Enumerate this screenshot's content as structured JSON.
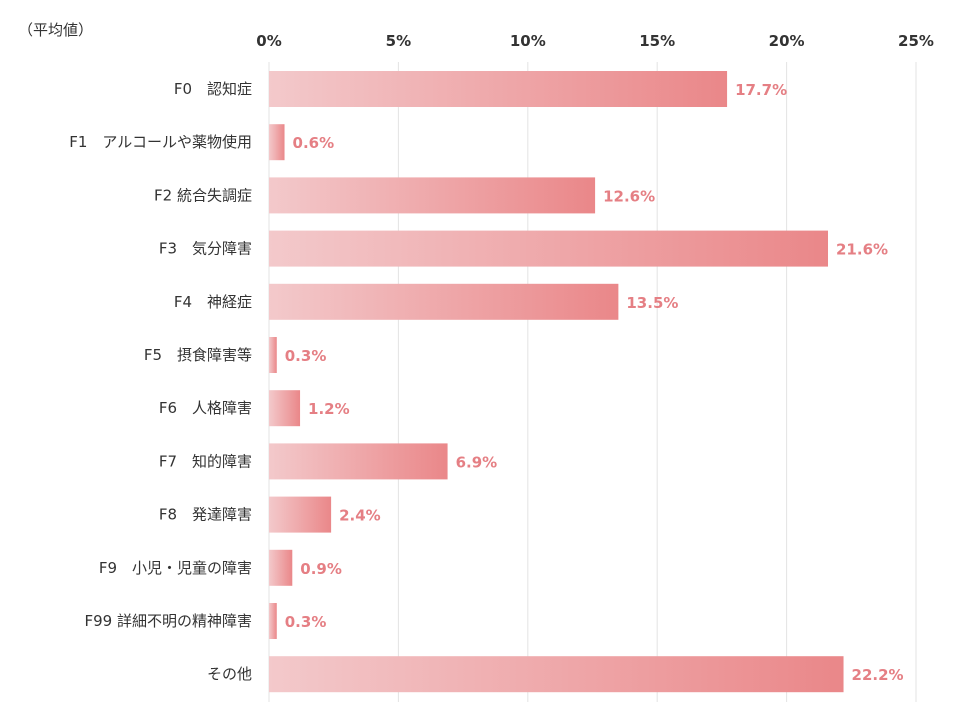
{
  "chart_data": {
    "type": "bar",
    "orientation": "horizontal",
    "unit_note": "（平均値）",
    "categories": [
      "F0　認知症",
      "F1　アルコールや薬物使用",
      "F2  統合失調症",
      "F3　気分障害",
      "F4　神経症",
      "F5　摂食障害等",
      "F6　人格障害",
      "F7　知的障害",
      "F8　発達障害",
      "F9　小児・児童の障害",
      "F99 詳細不明の精神障害",
      "その他"
    ],
    "values": [
      17.7,
      0.6,
      12.6,
      21.6,
      13.5,
      0.3,
      1.2,
      6.9,
      2.4,
      0.9,
      0.3,
      22.2
    ],
    "value_labels": [
      "17.7%",
      "0.6%",
      "12.6%",
      "21.6%",
      "13.5%",
      "0.3%",
      "1.2%",
      "6.9%",
      "2.4%",
      "0.9%",
      "0.3%",
      "22.2%"
    ],
    "xlim": [
      0,
      25
    ],
    "xticks": [
      0,
      5,
      10,
      15,
      20,
      25
    ],
    "xtick_labels": [
      "0%",
      "5%",
      "10%",
      "15%",
      "20%",
      "25%"
    ],
    "x_axis_position": "top",
    "grid": true,
    "legend": "none",
    "colors": {
      "bar_start": "#f3c9cb",
      "bar_end": "#ea8789",
      "value_label": "#e57f84",
      "grid": "#e3e3e3",
      "text": "#333333"
    }
  }
}
